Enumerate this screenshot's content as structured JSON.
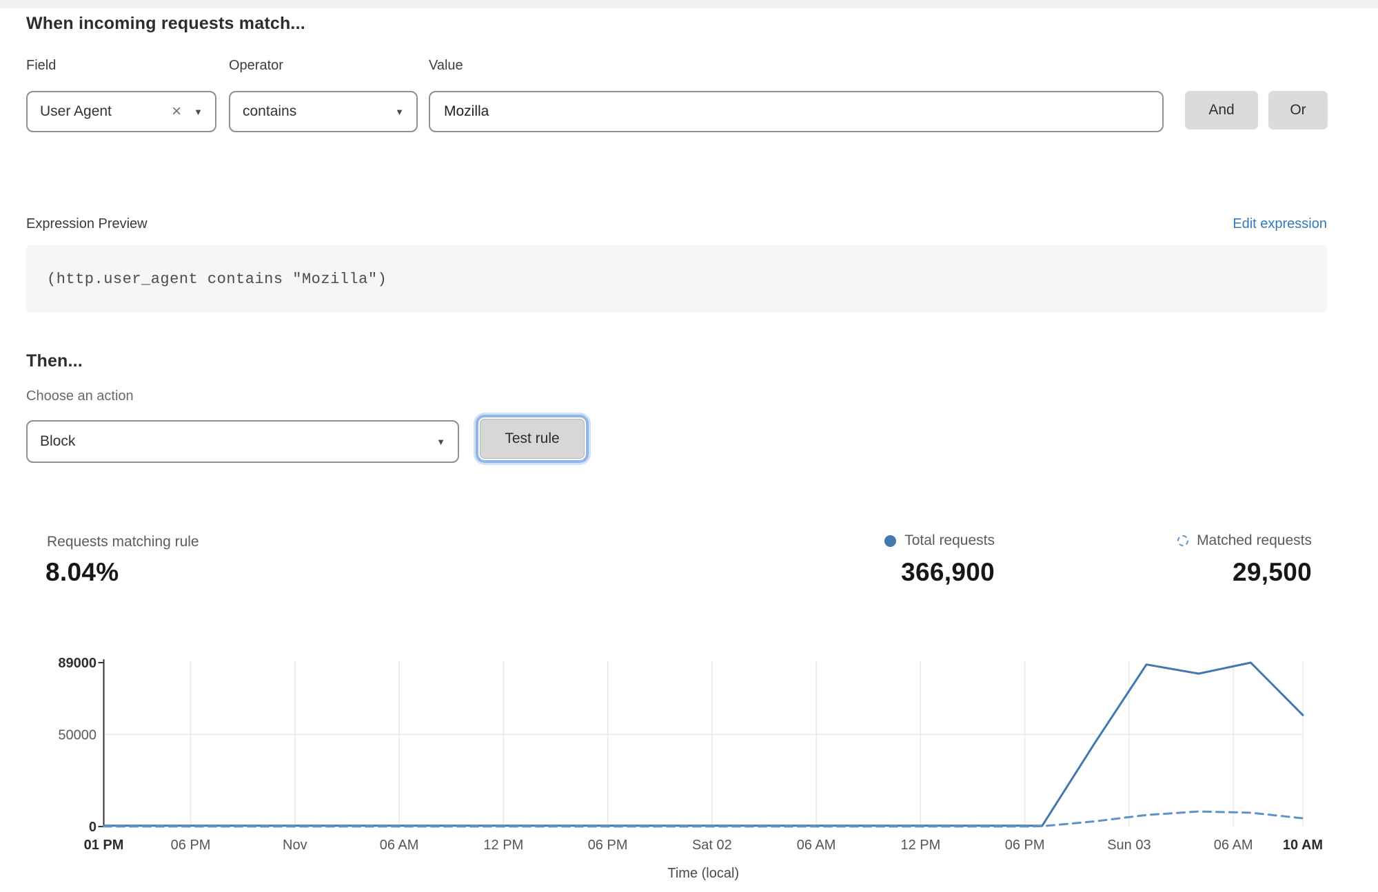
{
  "colors": {
    "line_total": "#4278ab",
    "line_matched": "#5d93c8",
    "link_blue": "#3279b7",
    "legend_dot_blue": "#3b70a4",
    "button_gray": "#dadbdc",
    "focus_ring_blue": "#8fb5ea"
  },
  "match_section": {
    "heading": "When incoming requests match...",
    "field": {
      "label": "Field",
      "value": "User Agent"
    },
    "operator": {
      "label": "Operator",
      "value": "contains"
    },
    "value": {
      "label": "Value",
      "value": "Mozilla"
    },
    "and_label": "And",
    "or_label": "Or"
  },
  "expression": {
    "label": "Expression Preview",
    "edit_link": "Edit expression",
    "code": "(http.user_agent contains \"Mozilla\")"
  },
  "then_section": {
    "heading": "Then...",
    "action_label": "Choose an action",
    "action_value": "Block",
    "test_button": "Test rule"
  },
  "stats": {
    "matching": {
      "label": "Requests matching rule",
      "value": "8.04%"
    },
    "total": {
      "label": "Total requests",
      "value": "366,900"
    },
    "matched": {
      "label": "Matched requests",
      "value": "29,500"
    }
  },
  "chart_data": {
    "type": "line",
    "xlabel": "Time (local)",
    "ylim": [
      0,
      89000
    ],
    "x_hours_total": 69,
    "grid": true,
    "yticks": [
      {
        "value": 0,
        "label": "0",
        "bold": true
      },
      {
        "value": 50000,
        "label": "50000",
        "bold": false
      },
      {
        "value": 89000,
        "label": "89000",
        "bold": true
      }
    ],
    "xticks": [
      {
        "hour": 0,
        "label": "01 PM",
        "bold": true
      },
      {
        "hour": 5,
        "label": "06 PM",
        "bold": false
      },
      {
        "hour": 11,
        "label": "Nov",
        "bold": false
      },
      {
        "hour": 17,
        "label": "06 AM",
        "bold": false
      },
      {
        "hour": 23,
        "label": "12 PM",
        "bold": false
      },
      {
        "hour": 29,
        "label": "06 PM",
        "bold": false
      },
      {
        "hour": 35,
        "label": "Sat 02",
        "bold": false
      },
      {
        "hour": 41,
        "label": "06 AM",
        "bold": false
      },
      {
        "hour": 47,
        "label": "12 PM",
        "bold": false
      },
      {
        "hour": 53,
        "label": "06 PM",
        "bold": false
      },
      {
        "hour": 59,
        "label": "Sun 03",
        "bold": false
      },
      {
        "hour": 65,
        "label": "06 AM",
        "bold": false
      },
      {
        "hour": 69,
        "label": "10 AM",
        "bold": true
      }
    ],
    "series": [
      {
        "name": "Total requests",
        "style": "solid",
        "color": "#4278ab",
        "points": [
          [
            0,
            500
          ],
          [
            6,
            500
          ],
          [
            12,
            500
          ],
          [
            18,
            500
          ],
          [
            24,
            500
          ],
          [
            30,
            500
          ],
          [
            36,
            500
          ],
          [
            42,
            500
          ],
          [
            48,
            500
          ],
          [
            53,
            500
          ],
          [
            54,
            400
          ],
          [
            57,
            45000
          ],
          [
            60,
            88000
          ],
          [
            63,
            83000
          ],
          [
            66,
            89000
          ],
          [
            69,
            60500
          ]
        ]
      },
      {
        "name": "Matched requests",
        "style": "dashed",
        "color": "#5d93c8",
        "points": [
          [
            0,
            50
          ],
          [
            6,
            50
          ],
          [
            12,
            50
          ],
          [
            18,
            50
          ],
          [
            24,
            50
          ],
          [
            30,
            50
          ],
          [
            36,
            50
          ],
          [
            42,
            50
          ],
          [
            48,
            50
          ],
          [
            53,
            50
          ],
          [
            54,
            200
          ],
          [
            57,
            2800
          ],
          [
            60,
            6300
          ],
          [
            63,
            8200
          ],
          [
            66,
            7500
          ],
          [
            69,
            4500
          ]
        ]
      }
    ],
    "legend_position": "top-right"
  }
}
